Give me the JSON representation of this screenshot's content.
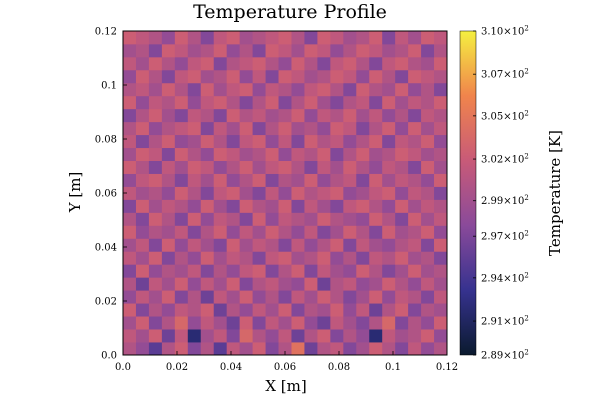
{
  "chart_data": {
    "type": "heatmap",
    "title": "Temperature Profile",
    "xlabel": "X [m]",
    "ylabel": "Y [m]",
    "colorbar_label": "Temperature [K]",
    "xlim": [
      0.0,
      0.12
    ],
    "ylim": [
      0.0,
      0.12
    ],
    "x_ticks": [
      "0.0",
      "0.02",
      "0.04",
      "0.06",
      "0.08",
      "0.1",
      "0.12"
    ],
    "y_ticks": [
      "0.0",
      "0.02",
      "0.04",
      "0.06",
      "0.08",
      "0.1",
      "0.12"
    ],
    "colorbar_ticks": [
      {
        "mantissa": "3.10",
        "exp": "2",
        "value": 310.0
      },
      {
        "mantissa": "3.07",
        "exp": "2",
        "value": 307.2
      },
      {
        "mantissa": "3.05",
        "exp": "2",
        "value": 304.5
      },
      {
        "mantissa": "3.02",
        "exp": "2",
        "value": 301.7
      },
      {
        "mantissa": "2.99",
        "exp": "2",
        "value": 299.0
      },
      {
        "mantissa": "2.97",
        "exp": "2",
        "value": 296.7
      },
      {
        "mantissa": "2.94",
        "exp": "2",
        "value": 294.0
      },
      {
        "mantissa": "2.91",
        "exp": "2",
        "value": 291.2
      },
      {
        "mantissa": "2.89",
        "exp": "2",
        "value": 289.0
      }
    ],
    "color_range": [
      289.0,
      310.0
    ],
    "grid_size": [
      25,
      25
    ],
    "z": [
      [
        300,
        298,
        295,
        300,
        302,
        297,
        300,
        295,
        301,
        299,
        302,
        297,
        300,
        304,
        296,
        300,
        301,
        297,
        299,
        302,
        300,
        297,
        301,
        298,
        300
      ],
      [
        301,
        299,
        302,
        296,
        301,
        292,
        299,
        301,
        297,
        303,
        300,
        298,
        301,
        296,
        300,
        302,
        297,
        300,
        298,
        292,
        301,
        299,
        300,
        302,
        298
      ],
      [
        299,
        302,
        297,
        300,
        303,
        298,
        301,
        299,
        296,
        302,
        297,
        301,
        299,
        302,
        298,
        296,
        301,
        299,
        297,
        300,
        303,
        297,
        300,
        298,
        302
      ],
      [
        302,
        297,
        300,
        298,
        301,
        300,
        302,
        296,
        300,
        298,
        301,
        299,
        302,
        297,
        300,
        299,
        302,
        298,
        301,
        296,
        300,
        302,
        297,
        300,
        299
      ],
      [
        298,
        301,
        299,
        302,
        297,
        300,
        296,
        301,
        299,
        302,
        298,
        300,
        297,
        301,
        299,
        302,
        300,
        297,
        299,
        302,
        298,
        301,
        300,
        297,
        301
      ],
      [
        300,
        296,
        301,
        299,
        302,
        298,
        301,
        299,
        302,
        297,
        300,
        301,
        299,
        298,
        302,
        296,
        300,
        301,
        298,
        299,
        302,
        300,
        298,
        301,
        299
      ],
      [
        297,
        302,
        298,
        300,
        299,
        301,
        297,
        300,
        298,
        301,
        302,
        297,
        300,
        302,
        297,
        301,
        299,
        298,
        302,
        300,
        297,
        299,
        302,
        299,
        300
      ],
      [
        301,
        299,
        302,
        297,
        300,
        298,
        302,
        299,
        301,
        300,
        297,
        301,
        302,
        299,
        300,
        302,
        298,
        300,
        297,
        301,
        300,
        302,
        299,
        300,
        297
      ],
      [
        299,
        301,
        297,
        302,
        298,
        301,
        299,
        297,
        302,
        299,
        301,
        300,
        297,
        301,
        298,
        300,
        302,
        297,
        301,
        299,
        298,
        300,
        301,
        297,
        302
      ],
      [
        302,
        298,
        300,
        299,
        301,
        297,
        300,
        302,
        298,
        301,
        299,
        302,
        300,
        298,
        301,
        297,
        299,
        302,
        300,
        297,
        302,
        299,
        300,
        302,
        298
      ],
      [
        300,
        297,
        302,
        300,
        297,
        302,
        298,
        301,
        300,
        297,
        302,
        298,
        301,
        300,
        299,
        302,
        300,
        299,
        298,
        302,
        300,
        297,
        302,
        299,
        301
      ],
      [
        297,
        302,
        299,
        301,
        300,
        298,
        302,
        299,
        297,
        302,
        300,
        299,
        302,
        297,
        301,
        299,
        297,
        301,
        302,
        300,
        298,
        302,
        299,
        301,
        300
      ],
      [
        301,
        299,
        300,
        298,
        302,
        300,
        297,
        301,
        302,
        299,
        297,
        301,
        298,
        302,
        300,
        301,
        302,
        298,
        299,
        301,
        302,
        298,
        301,
        300,
        297
      ],
      [
        298,
        301,
        302,
        300,
        297,
        301,
        299,
        302,
        298,
        300,
        302,
        297,
        300,
        299,
        302,
        298,
        300,
        301,
        297,
        302,
        299,
        301,
        300,
        298,
        302
      ],
      [
        302,
        300,
        297,
        301,
        299,
        302,
        301,
        298,
        300,
        302,
        299,
        301,
        302,
        300,
        297,
        301,
        299,
        302,
        300,
        298,
        301,
        300,
        297,
        302,
        299
      ],
      [
        299,
        302,
        301,
        297,
        302,
        300,
        298,
        302,
        301,
        299,
        300,
        302,
        298,
        301,
        300,
        302,
        297,
        300,
        302,
        299,
        300,
        302,
        301,
        299,
        300
      ],
      [
        301,
        297,
        300,
        302,
        298,
        299,
        302,
        300,
        297,
        301,
        302,
        298,
        301,
        297,
        302,
        300,
        301,
        298,
        300,
        302,
        297,
        301,
        300,
        302,
        298
      ],
      [
        300,
        302,
        298,
        300,
        301,
        302,
        297,
        301,
        299,
        302,
        297,
        300,
        302,
        299,
        300,
        298,
        302,
        301,
        297,
        300,
        302,
        298,
        302,
        299,
        301
      ],
      [
        297,
        300,
        302,
        299,
        297,
        301,
        300,
        297,
        302,
        300,
        301,
        299,
        300,
        302,
        298,
        301,
        300,
        302,
        299,
        301,
        298,
        300,
        297,
        301,
        300
      ],
      [
        302,
        298,
        301,
        300,
        302,
        298,
        301,
        302,
        300,
        297,
        300,
        302,
        297,
        300,
        302,
        299,
        297,
        300,
        301,
        297,
        302,
        299,
        301,
        300,
        302
      ],
      [
        300,
        301,
        299,
        302,
        300,
        297,
        302,
        299,
        301,
        302,
        298,
        301,
        300,
        298,
        301,
        302,
        300,
        297,
        302,
        300,
        299,
        302,
        298,
        300,
        297
      ],
      [
        298,
        302,
        300,
        297,
        301,
        302,
        299,
        300,
        302,
        298,
        301,
        297,
        302,
        301,
        299,
        300,
        302,
        301,
        298,
        302,
        300,
        297,
        302,
        301,
        300
      ],
      [
        301,
        299,
        302,
        300,
        298,
        301,
        302,
        297,
        300,
        301,
        302,
        300,
        298,
        302,
        300,
        297,
        301,
        302,
        300,
        297,
        301,
        302,
        300,
        299,
        302
      ],
      [
        299,
        300,
        297,
        302,
        301,
        299,
        300,
        302,
        298,
        300,
        297,
        302,
        301,
        299,
        302,
        301,
        298,
        300,
        302,
        301,
        299,
        300,
        302,
        297,
        300
      ],
      [
        302,
        301,
        300,
        298,
        302,
        300,
        297,
        301,
        302,
        299,
        300,
        301,
        302,
        300,
        297,
        302,
        301,
        299,
        300,
        302,
        297,
        301,
        299,
        302,
        301
      ]
    ]
  }
}
